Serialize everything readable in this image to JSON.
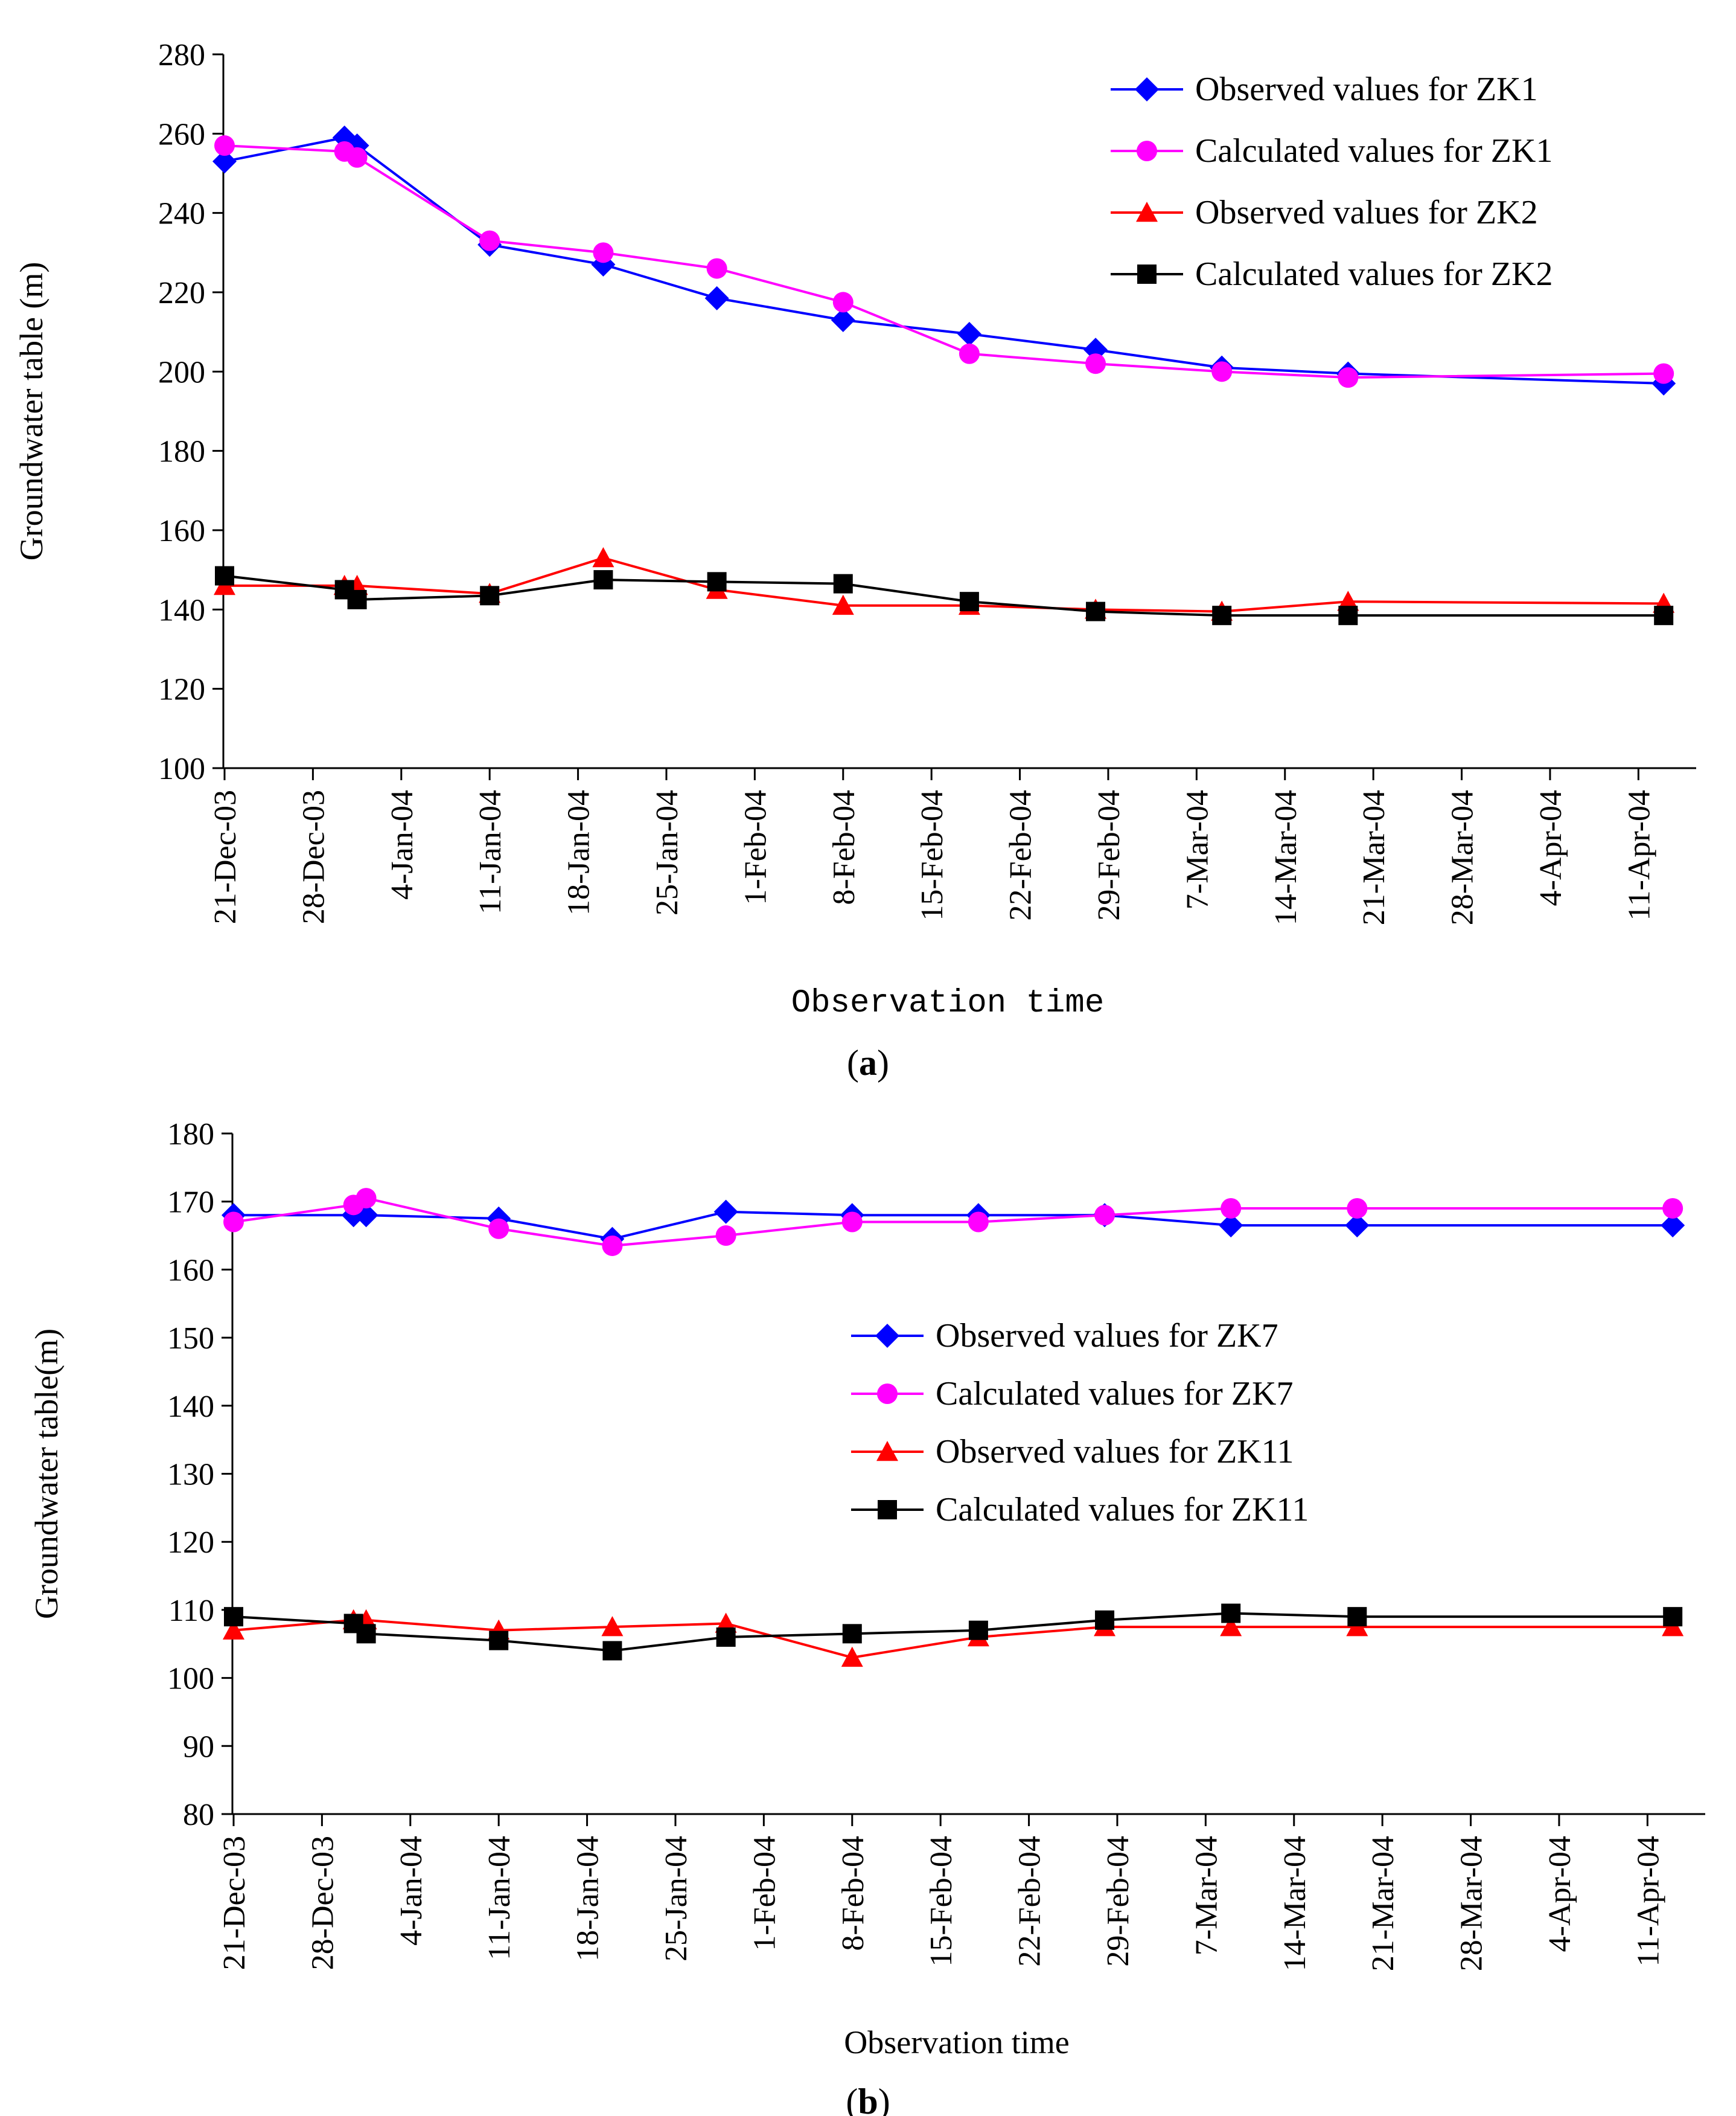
{
  "chart_data": [
    {
      "type": "line",
      "panel_label": "a",
      "xlabel": "Observation time",
      "ylabel": "Groundwater table (m)",
      "ylim": [
        100,
        280
      ],
      "yticks": [
        100,
        120,
        140,
        160,
        180,
        200,
        220,
        240,
        260,
        280
      ],
      "xticks": [
        "21-Dec-03",
        "28-Dec-03",
        "4-Jan-04",
        "11-Jan-04",
        "18-Jan-04",
        "25-Jan-04",
        "1-Feb-04",
        "8-Feb-04",
        "15-Feb-04",
        "22-Feb-04",
        "29-Feb-04",
        "7-Mar-04",
        "14-Mar-04",
        "21-Mar-04",
        "28-Mar-04",
        "4-Apr-04",
        "11-Apr-04"
      ],
      "x_days_from_start": [
        0,
        9.5,
        10.5,
        21,
        30,
        39,
        49,
        59,
        69,
        79,
        89,
        98,
        114
      ],
      "legend_position": "top-right",
      "series": [
        {
          "name": "Observed values for ZK1",
          "color": "#0000FF",
          "marker": "diamond",
          "values": [
            253,
            259,
            257,
            232,
            227,
            218.5,
            213,
            209.5,
            205.5,
            201,
            199.5,
            null,
            197
          ]
        },
        {
          "name": "Calculated values for ZK1",
          "color": "#FF00FF",
          "marker": "circle",
          "values": [
            257,
            255.5,
            254,
            233,
            230,
            226,
            217.5,
            204.5,
            202,
            200,
            198.5,
            null,
            199.5
          ]
        },
        {
          "name": "Observed values for ZK2",
          "color": "#FF0000",
          "marker": "triangle",
          "values": [
            146,
            146,
            146,
            144,
            153,
            145,
            141,
            141,
            140,
            139.5,
            142,
            null,
            141.5
          ]
        },
        {
          "name": "Calculated values for ZK2",
          "color": "#000000",
          "marker": "square",
          "values": [
            148.5,
            145,
            142.5,
            143.5,
            147.5,
            147,
            146.5,
            142,
            139.5,
            138.5,
            138.5,
            null,
            138.5
          ]
        }
      ]
    },
    {
      "type": "line",
      "panel_label": "b",
      "xlabel": "Observation time",
      "ylabel": "Groundwater table(m)",
      "ylim": [
        80,
        180
      ],
      "yticks": [
        80,
        90,
        100,
        110,
        120,
        130,
        140,
        150,
        160,
        170,
        180
      ],
      "xticks": [
        "21-Dec-03",
        "28-Dec-03",
        "4-Jan-04",
        "11-Jan-04",
        "18-Jan-04",
        "25-Jan-04",
        "1-Feb-04",
        "8-Feb-04",
        "15-Feb-04",
        "22-Feb-04",
        "29-Feb-04",
        "7-Mar-04",
        "14-Mar-04",
        "21-Mar-04",
        "28-Mar-04",
        "4-Apr-04",
        "11-Apr-04"
      ],
      "x_days_from_start": [
        0,
        9.5,
        10.5,
        21,
        30,
        39,
        49,
        59,
        69,
        79,
        89,
        98,
        114
      ],
      "legend_position": "center-right",
      "series": [
        {
          "name": "Observed values for ZK7",
          "color": "#0000FF",
          "marker": "diamond",
          "values": [
            168,
            168,
            168,
            167.5,
            164.5,
            168.5,
            168,
            168,
            168,
            166.5,
            166.5,
            null,
            166.5
          ]
        },
        {
          "name": "Calculated values for ZK7",
          "color": "#FF00FF",
          "marker": "circle",
          "values": [
            167,
            169.5,
            170.5,
            166,
            163.5,
            165,
            167,
            167,
            168,
            169,
            169,
            null,
            169
          ]
        },
        {
          "name": "Observed values for ZK11",
          "color": "#FF0000",
          "marker": "triangle",
          "values": [
            107,
            108.5,
            108.5,
            107,
            107.5,
            108,
            103,
            106,
            107.5,
            107.5,
            107.5,
            null,
            107.5
          ]
        },
        {
          "name": "Calculated values for ZK11",
          "color": "#000000",
          "marker": "square",
          "values": [
            109,
            108,
            106.5,
            105.5,
            104,
            106,
            106.5,
            107,
            108.5,
            109.5,
            109,
            null,
            109
          ]
        }
      ]
    }
  ]
}
